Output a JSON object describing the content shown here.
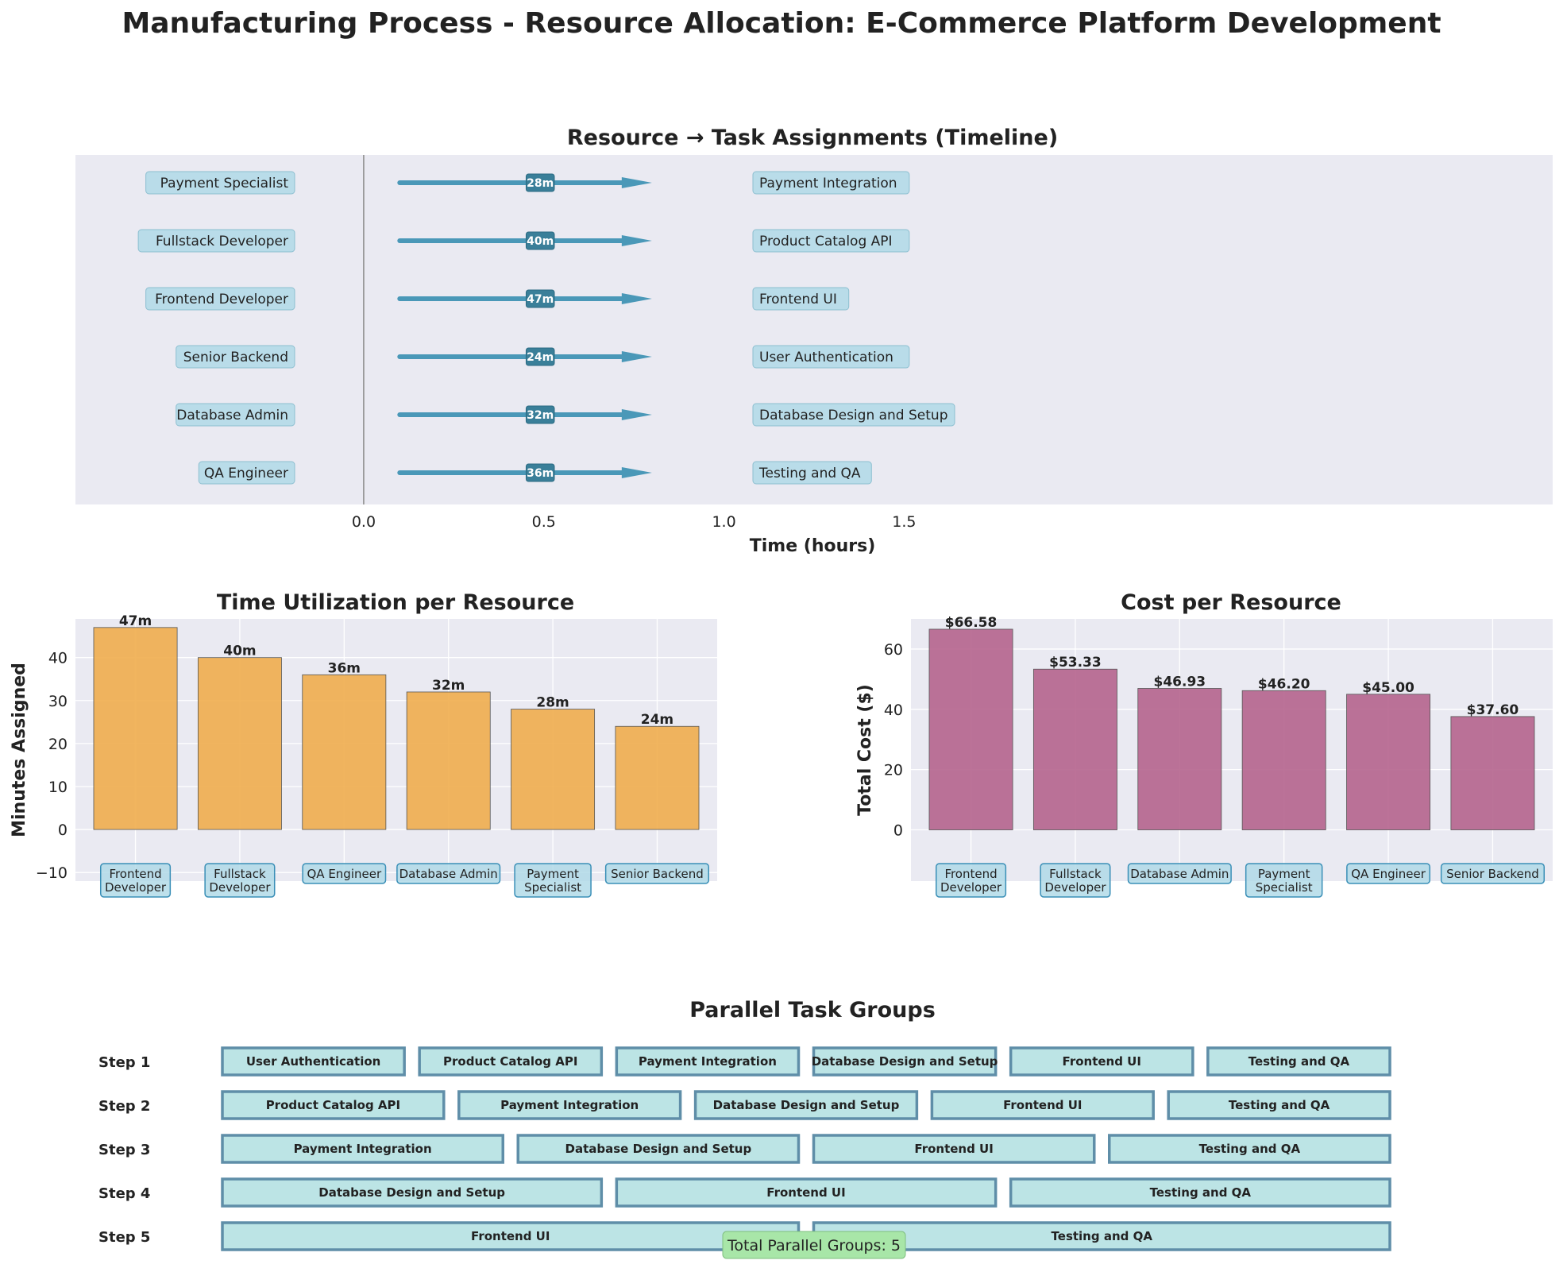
{
  "title": "Manufacturing Process - Resource Allocation: E-Commerce Platform Development",
  "chart_data": [
    {
      "type": "timeline",
      "title": "Resource → Task Assignments (Timeline)",
      "xlabel": "Time (hours)",
      "xticks": [
        "0.0",
        "0.5",
        "1.0",
        "1.5"
      ],
      "xlim": [
        -0.8,
        3.3
      ],
      "assignments": [
        {
          "resource": "Payment Specialist",
          "task": "Payment Integration",
          "minutes": 28,
          "label": "28m"
        },
        {
          "resource": "Fullstack Developer",
          "task": "Product Catalog API",
          "minutes": 40,
          "label": "40m"
        },
        {
          "resource": "Frontend Developer",
          "task": "Frontend UI",
          "minutes": 47,
          "label": "47m"
        },
        {
          "resource": "Senior Backend",
          "task": "User Authentication",
          "minutes": 24,
          "label": "24m"
        },
        {
          "resource": "Database Admin",
          "task": "Database Design and Setup",
          "minutes": 32,
          "label": "32m"
        },
        {
          "resource": "QA Engineer",
          "task": "Testing and QA",
          "minutes": 36,
          "label": "36m"
        }
      ]
    },
    {
      "type": "bar",
      "title": "Time Utilization per Resource",
      "xlabel": "",
      "ylabel": "Minutes Assigned",
      "ylim": [
        -12,
        49
      ],
      "yticks": [
        -10,
        0,
        10,
        20,
        30,
        40
      ],
      "color": "#f0ad4e",
      "categories": [
        [
          "Frontend",
          "Developer"
        ],
        [
          "Fullstack",
          "Developer"
        ],
        [
          "QA Engineer"
        ],
        [
          "Database Admin"
        ],
        [
          "Payment",
          "Specialist"
        ],
        [
          "Senior Backend"
        ]
      ],
      "values": [
        47,
        40,
        36,
        32,
        28,
        24
      ],
      "data_labels": [
        "47m",
        "40m",
        "36m",
        "32m",
        "28m",
        "24m"
      ]
    },
    {
      "type": "bar",
      "title": "Cost per Resource",
      "xlabel": "",
      "ylabel": "Total Cost ($)",
      "ylim": [
        -17,
        70
      ],
      "yticks": [
        0,
        20,
        40,
        60
      ],
      "color": "#b5648d",
      "categories": [
        [
          "Frontend",
          "Developer"
        ],
        [
          "Fullstack",
          "Developer"
        ],
        [
          "Database Admin"
        ],
        [
          "Payment",
          "Specialist"
        ],
        [
          "QA Engineer"
        ],
        [
          "Senior Backend"
        ]
      ],
      "values": [
        66.58,
        53.33,
        46.93,
        46.2,
        45.0,
        37.6
      ],
      "data_labels": [
        "$66.58",
        "$53.33",
        "$46.93",
        "$46.20",
        "$45.00",
        "$37.60"
      ]
    },
    {
      "type": "table",
      "title": "Parallel Task Groups",
      "groups": [
        {
          "label": "Step 1",
          "tasks": [
            "User Authentication",
            "Product Catalog API",
            "Payment Integration",
            "Database Design and Setup",
            "Frontend UI",
            "Testing and QA"
          ]
        },
        {
          "label": "Step 2",
          "tasks": [
            "Product Catalog API",
            "Payment Integration",
            "Database Design and Setup",
            "Frontend UI",
            "Testing and QA"
          ]
        },
        {
          "label": "Step 3",
          "tasks": [
            "Payment Integration",
            "Database Design and Setup",
            "Frontend UI",
            "Testing and QA"
          ]
        },
        {
          "label": "Step 4",
          "tasks": [
            "Database Design and Setup",
            "Frontend UI",
            "Testing and QA"
          ]
        },
        {
          "label": "Step 5",
          "tasks": [
            "Frontend UI",
            "Testing and QA"
          ]
        }
      ],
      "footer": "Total Parallel Groups: 5"
    }
  ]
}
